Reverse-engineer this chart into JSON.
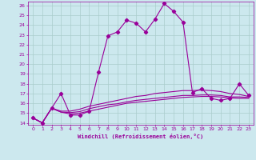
{
  "xlabel": "Windchill (Refroidissement éolien,°C)",
  "ylabel": "",
  "background_color": "#cce8ee",
  "grid_color": "#aacccc",
  "line_color": "#990099",
  "xlim": [
    -0.5,
    23.5
  ],
  "ylim": [
    13.8,
    26.4
  ],
  "xticks": [
    0,
    1,
    2,
    3,
    4,
    5,
    6,
    7,
    8,
    9,
    10,
    11,
    12,
    13,
    14,
    15,
    16,
    17,
    18,
    19,
    20,
    21,
    22,
    23
  ],
  "yticks": [
    14,
    15,
    16,
    17,
    18,
    19,
    20,
    21,
    22,
    23,
    24,
    25,
    26
  ],
  "curve1_x": [
    0,
    1,
    2,
    3,
    4,
    5,
    6,
    7,
    8,
    9,
    10,
    11,
    12,
    13,
    14,
    15,
    16,
    17,
    18,
    19,
    20,
    21,
    22,
    23
  ],
  "curve1_y": [
    14.5,
    14.0,
    15.5,
    17.0,
    14.8,
    14.8,
    15.2,
    19.2,
    22.9,
    23.3,
    24.5,
    24.2,
    23.3,
    24.6,
    26.2,
    25.4,
    24.3,
    17.1,
    17.5,
    16.5,
    16.3,
    16.5,
    18.0,
    16.8
  ],
  "curve2_x": [
    0,
    1,
    2,
    3,
    4,
    5,
    6,
    7,
    8,
    9,
    10,
    11,
    12,
    13,
    14,
    15,
    16,
    17,
    18,
    19,
    20,
    21,
    22,
    23
  ],
  "curve2_y": [
    14.5,
    14.0,
    15.5,
    15.1,
    14.9,
    15.0,
    15.2,
    15.4,
    15.6,
    15.8,
    16.0,
    16.1,
    16.2,
    16.3,
    16.4,
    16.5,
    16.6,
    16.65,
    16.7,
    16.7,
    16.65,
    16.55,
    16.5,
    16.5
  ],
  "curve3_x": [
    0,
    1,
    2,
    3,
    4,
    5,
    6,
    7,
    8,
    9,
    10,
    11,
    12,
    13,
    14,
    15,
    16,
    17,
    18,
    19,
    20,
    21,
    22,
    23
  ],
  "curve3_y": [
    14.5,
    14.0,
    15.5,
    15.1,
    15.05,
    15.15,
    15.45,
    15.65,
    15.85,
    15.95,
    16.15,
    16.3,
    16.4,
    16.5,
    16.6,
    16.7,
    16.8,
    16.8,
    16.85,
    16.85,
    16.8,
    16.65,
    16.65,
    16.6
  ],
  "curve4_x": [
    0,
    1,
    2,
    3,
    4,
    5,
    6,
    7,
    8,
    9,
    10,
    11,
    12,
    13,
    14,
    15,
    16,
    17,
    18,
    19,
    20,
    21,
    22,
    23
  ],
  "curve4_y": [
    14.5,
    14.0,
    15.5,
    15.2,
    15.2,
    15.4,
    15.7,
    15.9,
    16.1,
    16.3,
    16.5,
    16.7,
    16.8,
    17.0,
    17.1,
    17.2,
    17.3,
    17.3,
    17.35,
    17.3,
    17.2,
    17.0,
    16.9,
    16.7
  ]
}
